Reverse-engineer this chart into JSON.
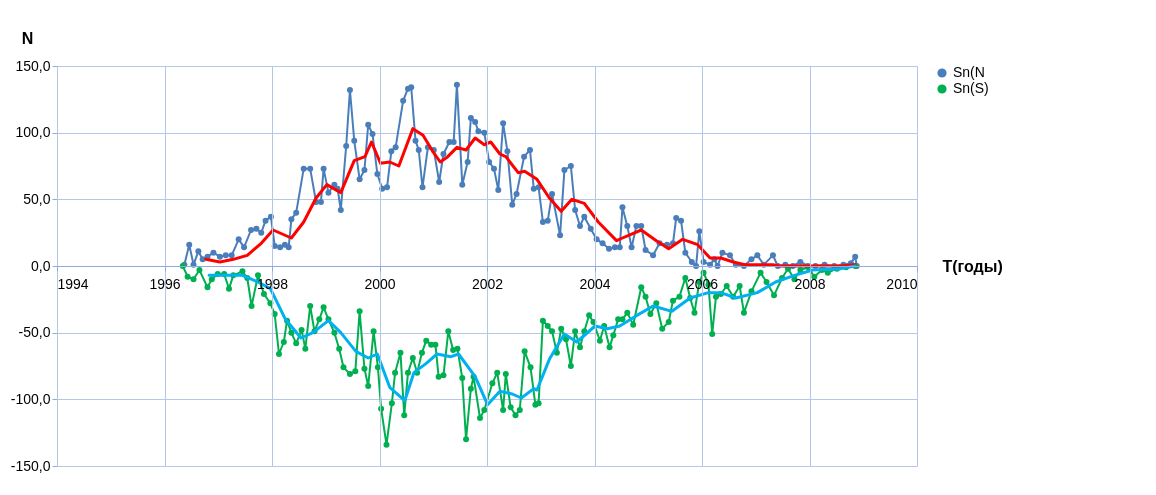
{
  "chart_data": {
    "type": "line",
    "xlabel": "T(годы)",
    "ylabel": "N",
    "xlim": [
      1994,
      2010
    ],
    "xticks": [
      1994,
      1996,
      1998,
      2000,
      2002,
      2004,
      2006,
      2008,
      2010
    ],
    "ylim": [
      -150,
      150
    ],
    "yticks": [
      {
        "value": -150,
        "label": "-150,0"
      },
      {
        "value": -100,
        "label": "-100,0"
      },
      {
        "value": -50,
        "label": "-50,0"
      },
      {
        "value": 0,
        "label": "0,0"
      },
      {
        "value": 50,
        "label": "50,0"
      },
      {
        "value": 100,
        "label": "100,0"
      },
      {
        "value": 150,
        "label": "150,0"
      }
    ],
    "grid": true,
    "legend": "right",
    "line_style": "solid",
    "series": [
      {
        "name": "Sn(N",
        "color": "#4a7ebb",
        "marker": "circle",
        "x": [
          1996.37,
          1996.46,
          1996.54,
          1996.63,
          1996.71,
          1996.8,
          1996.91,
          1997.03,
          1997.14,
          1997.25,
          1997.38,
          1997.48,
          1997.61,
          1997.71,
          1997.8,
          1997.88,
          1997.98,
          1998.05,
          1998.15,
          1998.24,
          1998.31,
          1998.36,
          1998.45,
          1998.59,
          1998.71,
          1998.82,
          1998.91,
          1998.96,
          1999.05,
          1999.16,
          1999.22,
          1999.28,
          1999.38,
          1999.45,
          1999.53,
          1999.63,
          1999.72,
          1999.79,
          1999.87,
          1999.96,
          2000.05,
          2000.14,
          2000.22,
          2000.3,
          2000.44,
          2000.53,
          2000.59,
          2000.67,
          2000.73,
          2000.8,
          2000.9,
          2001.01,
          2001.11,
          2001.19,
          2001.3,
          2001.38,
          2001.44,
          2001.54,
          2001.64,
          2001.7,
          2001.78,
          2001.84,
          2001.95,
          2002.04,
          2002.13,
          2002.21,
          2002.3,
          2002.38,
          2002.47,
          2002.55,
          2002.69,
          2002.8,
          2002.87,
          2002.96,
          2003.04,
          2003.13,
          2003.21,
          2003.36,
          2003.44,
          2003.56,
          2003.64,
          2003.73,
          2003.81,
          2003.93,
          2004.04,
          2004.15,
          2004.27,
          2004.38,
          2004.47,
          2004.52,
          2004.61,
          2004.69,
          2004.78,
          2004.87,
          2004.95,
          2005.09,
          2005.21,
          2005.35,
          2005.46,
          2005.52,
          2005.61,
          2005.69,
          2005.81,
          2005.89,
          2005.95,
          2006.03,
          2006.15,
          2006.23,
          2006.29,
          2006.38,
          2006.52,
          2006.63,
          2006.78,
          2006.92,
          2007.03,
          2007.15,
          2007.32,
          2007.41,
          2007.55,
          2007.69,
          2007.83,
          2007.97,
          2008.11,
          2008.28,
          2008.46,
          2008.63,
          2008.77,
          2008.85,
          2008.88
        ],
        "values": [
          1,
          16,
          1,
          11,
          5,
          7,
          10,
          7,
          8,
          8,
          20,
          14,
          27,
          28,
          25,
          34,
          37,
          15,
          14,
          16,
          14,
          35,
          40,
          73,
          73,
          48,
          48,
          73,
          55,
          61,
          58,
          42,
          90,
          132,
          94,
          65,
          72,
          106,
          99,
          69,
          58,
          59,
          86,
          89,
          124,
          133,
          134,
          94,
          87,
          59,
          89,
          87,
          63,
          84,
          93,
          93,
          136,
          61,
          78,
          111,
          108,
          101,
          100,
          78,
          73,
          57,
          107,
          86,
          46,
          54,
          82,
          87,
          58,
          59,
          33,
          34,
          54,
          23,
          72,
          75,
          42,
          30,
          37,
          28,
          20,
          17,
          13,
          14,
          14,
          44,
          30,
          14,
          30,
          30,
          12,
          8,
          17,
          16,
          17,
          36,
          34,
          10,
          3,
          0,
          26,
          3,
          1,
          5,
          0,
          10,
          8,
          1,
          0,
          5,
          8,
          1,
          8,
          0,
          1,
          0,
          3,
          0,
          0,
          1,
          0,
          1,
          2,
          7,
          0
        ]
      },
      {
        "name": "Sn(S)",
        "color": "#00b050",
        "marker": "circle",
        "x": [
          1996.34,
          1996.43,
          1996.54,
          1996.65,
          1996.8,
          1996.88,
          1996.99,
          1997.11,
          1997.2,
          1997.28,
          1997.45,
          1997.54,
          1997.62,
          1997.74,
          1997.85,
          1997.97,
          1998.05,
          1998.13,
          1998.22,
          1998.28,
          1998.36,
          1998.45,
          1998.55,
          1998.62,
          1998.71,
          1998.79,
          1998.88,
          1998.96,
          1999.05,
          1999.16,
          1999.25,
          1999.33,
          1999.45,
          1999.55,
          1999.63,
          1999.72,
          1999.79,
          1999.89,
          1999.97,
          2000.03,
          2000.13,
          2000.23,
          2000.29,
          2000.39,
          2000.46,
          2000.53,
          2000.62,
          2000.7,
          2000.79,
          2000.87,
          2000.96,
          2001.04,
          2001.1,
          2001.19,
          2001.28,
          2001.37,
          2001.45,
          2001.54,
          2001.61,
          2001.7,
          2001.75,
          2001.87,
          2001.95,
          2002.1,
          2002.19,
          2002.3,
          2002.35,
          2002.44,
          2002.53,
          2002.61,
          2002.7,
          2002.81,
          2002.9,
          2002.96,
          2003.04,
          2003.13,
          2003.21,
          2003.3,
          2003.38,
          2003.47,
          2003.56,
          2003.64,
          2003.73,
          2003.81,
          2003.9,
          2003.98,
          2004.1,
          2004.18,
          2004.28,
          2004.35,
          2004.44,
          2004.52,
          2004.61,
          2004.72,
          2004.87,
          2004.95,
          2005.04,
          2005.15,
          2005.26,
          2005.38,
          2005.46,
          2005.58,
          2005.69,
          2005.78,
          2005.86,
          2005.95,
          2006.03,
          2006.12,
          2006.19,
          2006.26,
          2006.35,
          2006.46,
          2006.58,
          2006.7,
          2006.78,
          2006.92,
          2007.09,
          2007.2,
          2007.34,
          2007.49,
          2007.6,
          2007.72,
          2007.83,
          2007.97,
          2008.09,
          2008.23,
          2008.34,
          2008.51,
          2008.68,
          2008.85
        ],
        "values": [
          0,
          -8,
          -10,
          -3,
          -16,
          -10,
          -6,
          -6,
          -17,
          -7,
          -4,
          -9,
          -30,
          -7,
          -21,
          -28,
          -36,
          -66,
          -57,
          -41,
          -50,
          -58,
          -48,
          -62,
          -30,
          -49,
          -40,
          -31,
          -40,
          -50,
          -62,
          -76,
          -81,
          -79,
          -34,
          -77,
          -90,
          -49,
          -76,
          -107,
          -134,
          -103,
          -80,
          -65,
          -112,
          -80,
          -69,
          -80,
          -65,
          -56,
          -59,
          -59,
          -83,
          -82,
          -49,
          -63,
          -62,
          -84,
          -130,
          -92,
          -83,
          -114,
          -108,
          -88,
          -80,
          -108,
          -81,
          -106,
          -112,
          -108,
          -64,
          -76,
          -104,
          -103,
          -41,
          -45,
          -49,
          -65,
          -47,
          -55,
          -75,
          -49,
          -61,
          -49,
          -37,
          -42,
          -56,
          -45,
          -61,
          -52,
          -40,
          -40,
          -35,
          -44,
          -16,
          -23,
          -36,
          -28,
          -47,
          -42,
          -26,
          -23,
          -9,
          -24,
          -35,
          -12,
          -5,
          -14,
          -51,
          -23,
          -21,
          -15,
          -23,
          -15,
          -35,
          -19,
          -5,
          -12,
          -22,
          -9,
          -2,
          -10,
          -3,
          -1,
          -8,
          -3,
          -5,
          -2,
          -1,
          0
        ]
      },
      {
        "color": "#ff0000",
        "marker": "none",
        "x": [
          1996.77,
          1997.03,
          1997.28,
          1997.54,
          1997.8,
          1998.02,
          1998.36,
          1998.59,
          1998.82,
          1999.02,
          1999.28,
          1999.53,
          1999.73,
          1999.85,
          2000.02,
          2000.19,
          2000.36,
          2000.62,
          2000.81,
          2000.99,
          2001.13,
          2001.27,
          2001.44,
          2001.61,
          2001.78,
          2001.95,
          2002.07,
          2002.24,
          2002.35,
          2002.58,
          2002.7,
          2002.93,
          2003.16,
          2003.38,
          2003.58,
          2003.81,
          2004.07,
          2004.41,
          2004.52,
          2004.87,
          2005.15,
          2005.38,
          2005.64,
          2005.92,
          2006.15,
          2006.35,
          2006.58,
          2006.8,
          2007.32,
          2007.43,
          2008.0,
          2008.57,
          2008.85
        ],
        "values": [
          5,
          3,
          5,
          8,
          17,
          27,
          21,
          33,
          51,
          61,
          55,
          79,
          82,
          93,
          77,
          78,
          75,
          103,
          98,
          86,
          78,
          82,
          89,
          87,
          96,
          91,
          93,
          84,
          82,
          70,
          71,
          65,
          51,
          41,
          50,
          47,
          33,
          19,
          21,
          27,
          19,
          13,
          20,
          16,
          6,
          6,
          3,
          1,
          1,
          0,
          0,
          0,
          1
        ]
      },
      {
        "color": "#00b0f0",
        "marker": "none",
        "x": [
          1996.83,
          1997.11,
          1997.45,
          1997.74,
          1997.97,
          1998.25,
          1998.54,
          1998.76,
          1999.05,
          1999.28,
          1999.56,
          1999.79,
          1999.96,
          2000.19,
          2000.47,
          2000.64,
          2000.87,
          2001.07,
          2001.33,
          2001.47,
          2001.78,
          2002.01,
          2002.24,
          2002.47,
          2002.64,
          2002.87,
          2002.93,
          2003.16,
          2003.44,
          2003.67,
          2004.01,
          2004.24,
          2004.47,
          2004.75,
          2005.09,
          2005.44,
          2005.78,
          2006.12,
          2006.35,
          2006.63,
          2007.03,
          2007.37,
          2007.72,
          2008.06,
          2008.57,
          2008.85
        ],
        "values": [
          -7,
          -7,
          -7,
          -12,
          -17,
          -40,
          -54,
          -50,
          -41,
          -50,
          -64,
          -69,
          -66,
          -91,
          -101,
          -80,
          -73,
          -66,
          -68,
          -66,
          -83,
          -104,
          -94,
          -96,
          -99,
          -92,
          -93,
          -70,
          -51,
          -57,
          -45,
          -47,
          -45,
          -38,
          -30,
          -34,
          -24,
          -20,
          -20,
          -24,
          -20,
          -12,
          -7,
          -3,
          -2,
          0
        ]
      }
    ]
  }
}
